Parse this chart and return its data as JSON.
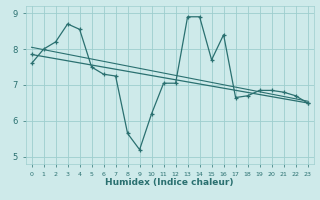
{
  "xlabel": "Humidex (Indice chaleur)",
  "bg_color": "#ceeaea",
  "line_color": "#2a7070",
  "grid_color": "#9ecece",
  "xlim": [
    -0.5,
    23.5
  ],
  "ylim": [
    4.8,
    9.2
  ],
  "yticks": [
    5,
    6,
    7,
    8,
    9
  ],
  "xticks": [
    0,
    1,
    2,
    3,
    4,
    5,
    6,
    7,
    8,
    9,
    10,
    11,
    12,
    13,
    14,
    15,
    16,
    17,
    18,
    19,
    20,
    21,
    22,
    23
  ],
  "series": [
    {
      "x": [
        0,
        1,
        2,
        3,
        4,
        5,
        6,
        7,
        8,
        9,
        10,
        11,
        12,
        13,
        14,
        15,
        16,
        17,
        18,
        19,
        20,
        21,
        22,
        23
      ],
      "y": [
        7.6,
        8.0,
        8.2,
        8.7,
        8.55,
        7.5,
        7.3,
        7.25,
        5.65,
        5.2,
        6.2,
        7.05,
        7.05,
        8.9,
        8.9,
        7.7,
        8.4,
        6.65,
        6.7,
        6.85,
        6.85,
        6.8,
        6.7,
        6.5
      ]
    },
    {
      "x": [
        0,
        23
      ],
      "y": [
        7.85,
        6.5
      ]
    },
    {
      "x": [
        0,
        23
      ],
      "y": [
        8.05,
        6.55
      ]
    }
  ]
}
